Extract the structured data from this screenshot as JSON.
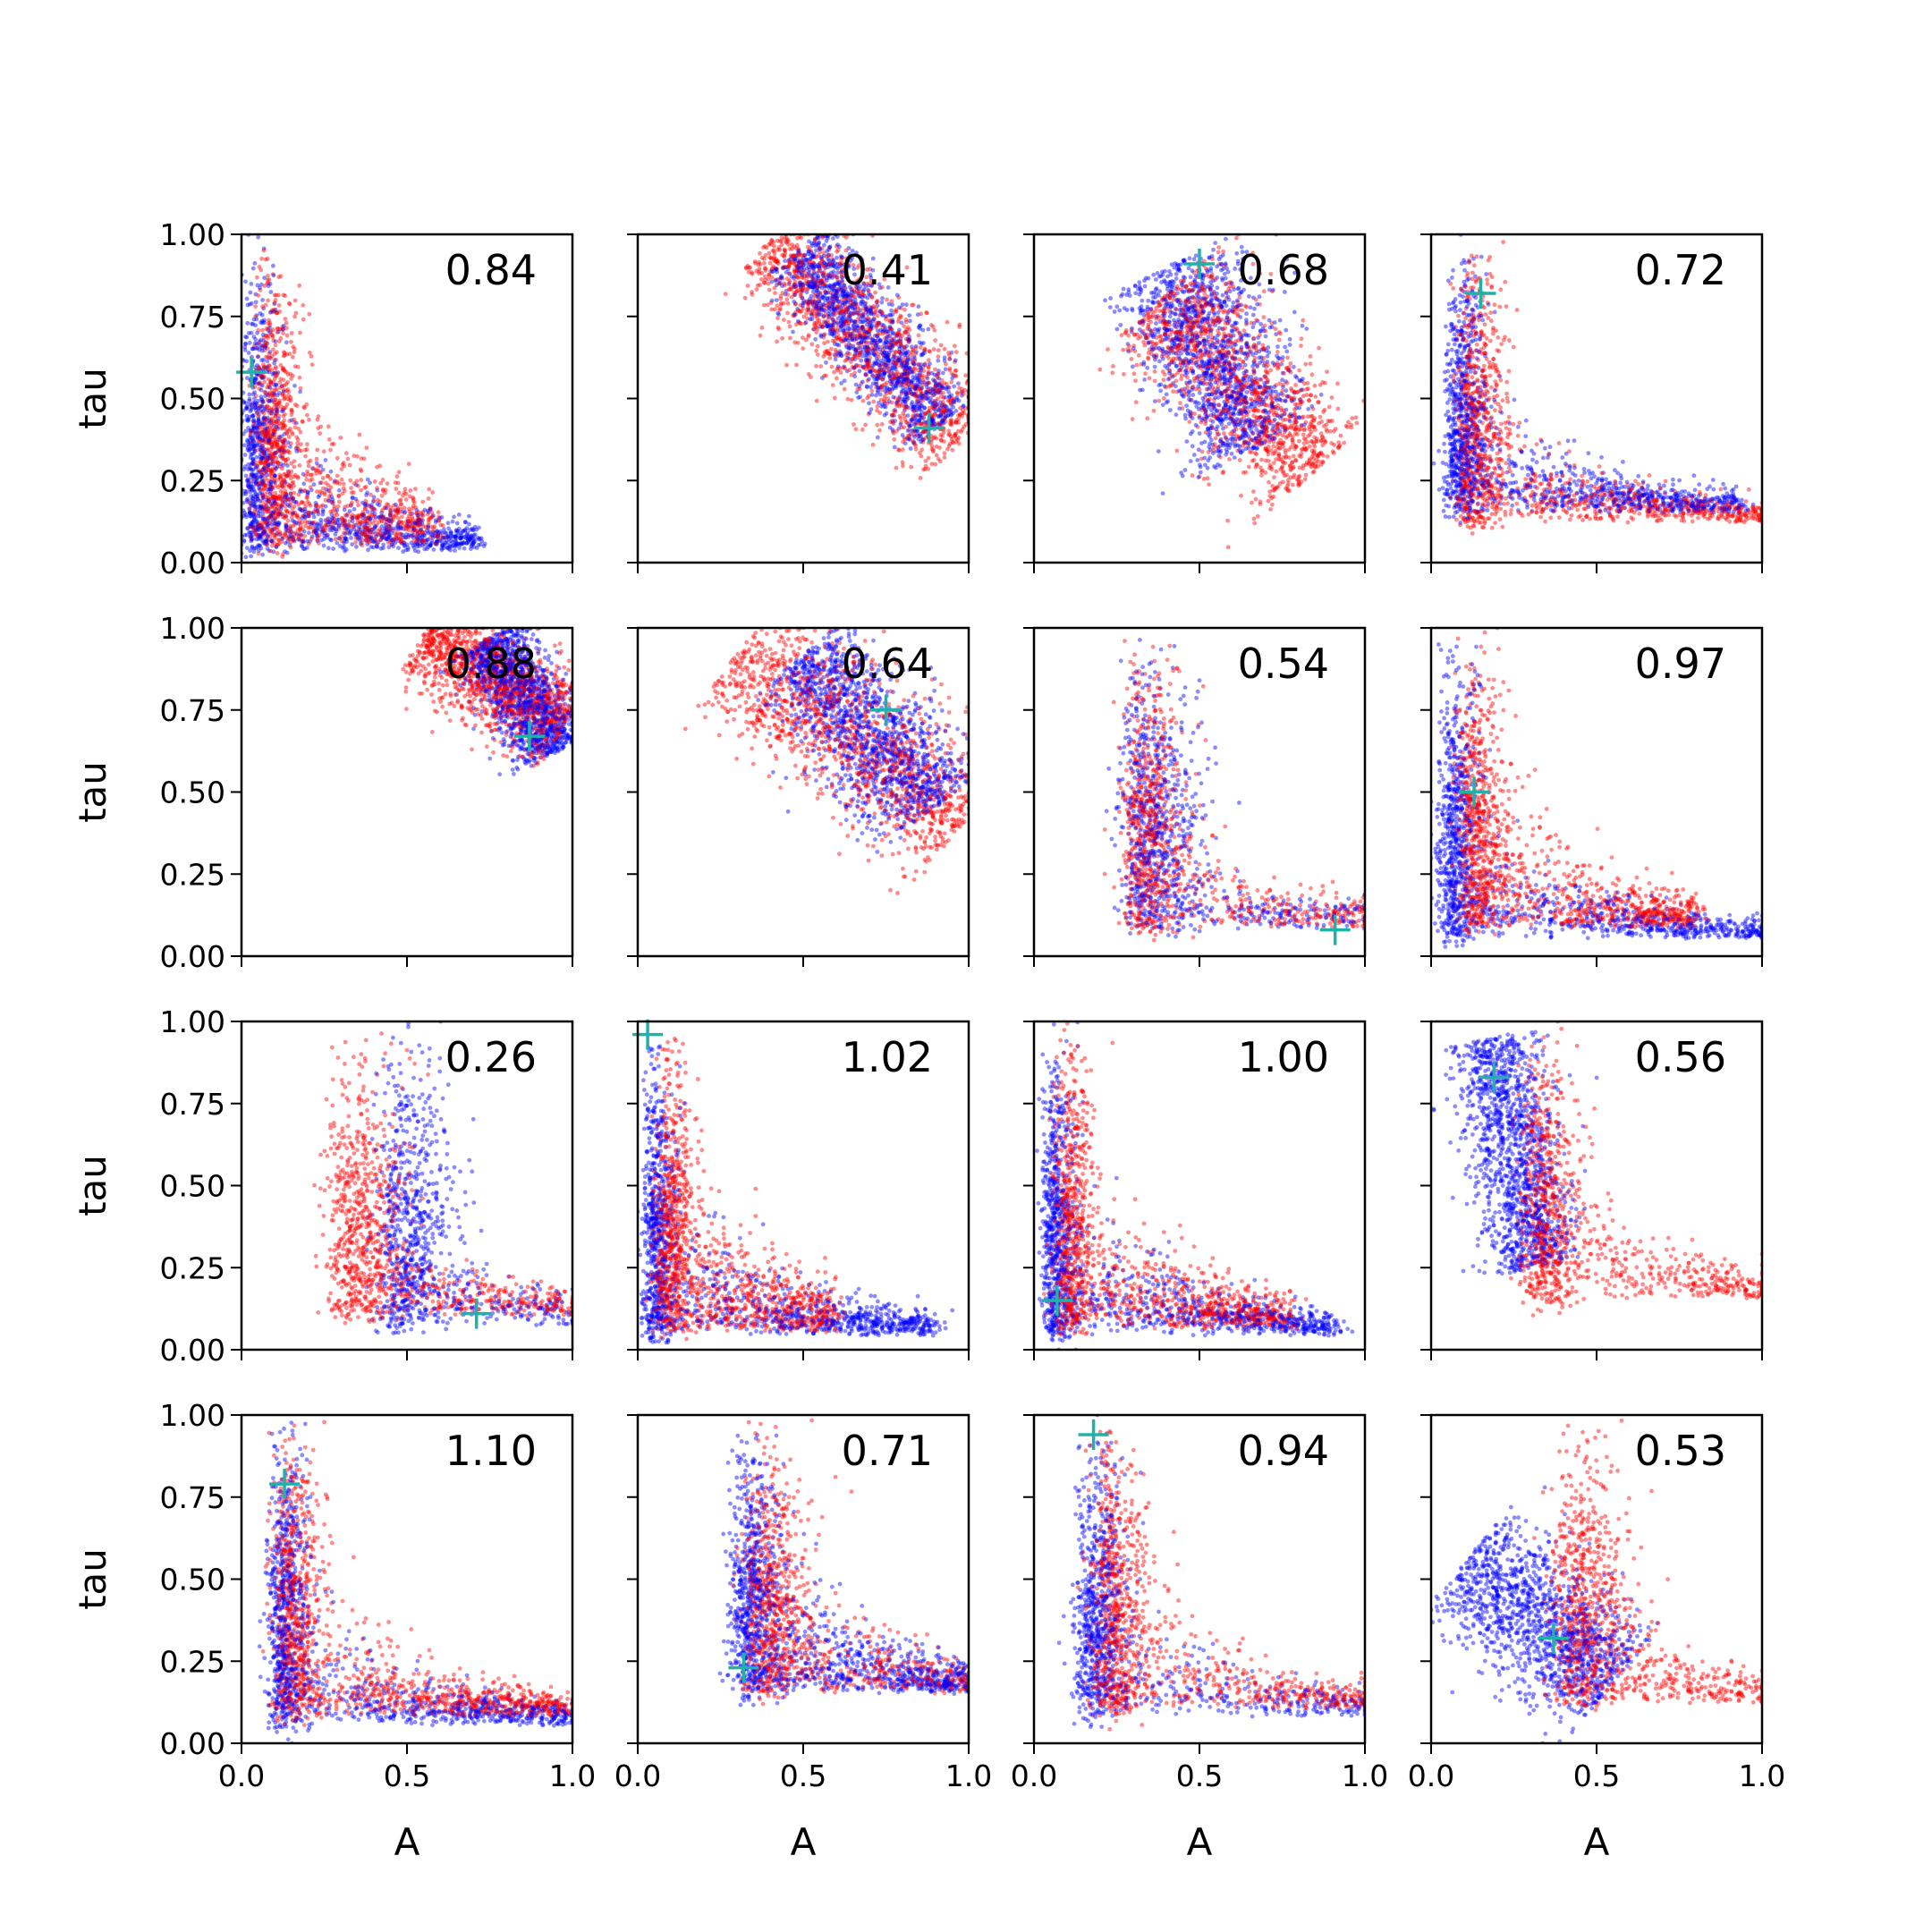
{
  "figure": {
    "background": "#ffffff",
    "blue": "#0000ff",
    "red": "#ff0000",
    "marker": "#20b2aa"
  },
  "chart_data": {
    "type": "scatter",
    "layout": "4x4 grid, shared x and y axes",
    "xlabel": "A",
    "ylabel": "tau",
    "xlim": [
      0,
      1
    ],
    "ylim": [
      0,
      1
    ],
    "xticks": [
      "0.0",
      "0.5",
      "1.0"
    ],
    "yticks": [
      "0.00",
      "0.25",
      "0.50",
      "0.75",
      "1.00"
    ],
    "grid": false,
    "legend": "none",
    "panels": [
      {
        "annotation": "0.84",
        "marker": [
          0.03,
          0.58
        ],
        "blue": {
          "shape": "L",
          "corner": [
            0.02,
            0.03
          ],
          "sx": 0.05,
          "sy": 0.35,
          "ex": 0.2
        },
        "red": {
          "shape": "L",
          "corner": [
            0.06,
            0.05
          ],
          "sx": 0.06,
          "sy": 0.45,
          "ex": 0.15
        }
      },
      {
        "annotation": "0.41",
        "marker": [
          0.88,
          0.41
        ],
        "blue": {
          "shape": "band",
          "from": [
            0.48,
            0.95
          ],
          "to": [
            0.92,
            0.42
          ],
          "w": 0.06
        },
        "red": {
          "shape": "band",
          "from": [
            0.4,
            0.98
          ],
          "to": [
            0.98,
            0.37
          ],
          "w": 0.08
        }
      },
      {
        "annotation": "0.68",
        "marker": [
          0.5,
          0.91
        ],
        "blue": {
          "shape": "band",
          "from": [
            0.4,
            0.9
          ],
          "to": [
            0.68,
            0.35
          ],
          "w": 0.1
        },
        "red": {
          "shape": "band",
          "from": [
            0.38,
            0.8
          ],
          "to": [
            0.85,
            0.28
          ],
          "w": 0.1
        }
      },
      {
        "annotation": "0.72",
        "marker": [
          0.15,
          0.82
        ],
        "blue": {
          "shape": "L",
          "corner": [
            0.06,
            0.15
          ],
          "sx": 0.05,
          "sy": 0.35,
          "ex": 0.25
        },
        "red": {
          "shape": "L",
          "corner": [
            0.1,
            0.12
          ],
          "sx": 0.06,
          "sy": 0.35,
          "ex": 0.3
        }
      },
      {
        "annotation": "0.88",
        "marker": [
          0.87,
          0.67
        ],
        "blue": {
          "shape": "band",
          "from": [
            0.75,
            0.97
          ],
          "to": [
            0.95,
            0.62
          ],
          "w": 0.06
        },
        "red": {
          "shape": "band",
          "from": [
            0.55,
            0.98
          ],
          "to": [
            0.98,
            0.7
          ],
          "w": 0.07
        }
      },
      {
        "annotation": "0.64",
        "marker": [
          0.75,
          0.75
        ],
        "blue": {
          "shape": "band",
          "from": [
            0.5,
            0.92
          ],
          "to": [
            0.9,
            0.45
          ],
          "w": 0.09
        },
        "red": {
          "shape": "band",
          "from": [
            0.3,
            0.92
          ],
          "to": [
            0.98,
            0.4
          ],
          "w": 0.1
        }
      },
      {
        "annotation": "0.54",
        "marker": [
          0.91,
          0.08
        ],
        "blue": {
          "shape": "L",
          "corner": [
            0.3,
            0.08
          ],
          "sx": 0.1,
          "sy": 0.25,
          "ex": 0.6
        },
        "red": {
          "shape": "L",
          "corner": [
            0.3,
            0.08
          ],
          "sx": 0.08,
          "sy": 0.4,
          "ex": 0.4
        }
      },
      {
        "annotation": "0.97",
        "marker": [
          0.13,
          0.5
        ],
        "blue": {
          "shape": "L",
          "corner": [
            0.04,
            0.05
          ],
          "sx": 0.05,
          "sy": 0.4,
          "ex": 0.3
        },
        "red": {
          "shape": "L",
          "corner": [
            0.1,
            0.08
          ],
          "sx": 0.06,
          "sy": 0.45,
          "ex": 0.2
        }
      },
      {
        "annotation": "0.26",
        "marker": [
          0.71,
          0.11
        ],
        "blue": {
          "shape": "L",
          "corner": [
            0.45,
            0.07
          ],
          "sx": 0.1,
          "sy": 0.3,
          "ex": 0.45
        },
        "red": {
          "shape": "L",
          "corner": [
            0.3,
            0.1
          ],
          "sx": 0.1,
          "sy": 0.3,
          "ex": 0.35
        }
      },
      {
        "annotation": "1.02",
        "marker": [
          0.03,
          0.96
        ],
        "blue": {
          "shape": "L",
          "corner": [
            0.03,
            0.04
          ],
          "sx": 0.04,
          "sy": 0.45,
          "ex": 0.25
        },
        "red": {
          "shape": "L",
          "corner": [
            0.07,
            0.05
          ],
          "sx": 0.05,
          "sy": 0.45,
          "ex": 0.15
        }
      },
      {
        "annotation": "1.00",
        "marker": [
          0.07,
          0.15
        ],
        "blue": {
          "shape": "L",
          "corner": [
            0.04,
            0.04
          ],
          "sx": 0.04,
          "sy": 0.45,
          "ex": 0.25
        },
        "red": {
          "shape": "L",
          "corner": [
            0.08,
            0.06
          ],
          "sx": 0.05,
          "sy": 0.45,
          "ex": 0.2
        }
      },
      {
        "annotation": "0.56",
        "marker": [
          0.19,
          0.83
        ],
        "blue": {
          "shape": "band",
          "from": [
            0.18,
            0.95
          ],
          "to": [
            0.32,
            0.25
          ],
          "w": 0.07
        },
        "red": {
          "shape": "L",
          "corner": [
            0.3,
            0.15
          ],
          "sx": 0.07,
          "sy": 0.4,
          "ex": 0.35
        }
      },
      {
        "annotation": "1.10",
        "marker": [
          0.13,
          0.79
        ],
        "blue": {
          "shape": "L",
          "corner": [
            0.1,
            0.05
          ],
          "sx": 0.05,
          "sy": 0.4,
          "ex": 0.3
        },
        "red": {
          "shape": "L",
          "corner": [
            0.12,
            0.08
          ],
          "sx": 0.06,
          "sy": 0.4,
          "ex": 0.25
        }
      },
      {
        "annotation": "0.71",
        "marker": [
          0.32,
          0.23
        ],
        "blue": {
          "shape": "L",
          "corner": [
            0.3,
            0.15
          ],
          "sx": 0.07,
          "sy": 0.45,
          "ex": 0.2
        },
        "red": {
          "shape": "L",
          "corner": [
            0.35,
            0.15
          ],
          "sx": 0.08,
          "sy": 0.4,
          "ex": 0.35
        }
      },
      {
        "annotation": "0.94",
        "marker": [
          0.18,
          0.94
        ],
        "blue": {
          "shape": "L",
          "corner": [
            0.15,
            0.08
          ],
          "sx": 0.06,
          "sy": 0.45,
          "ex": 0.45
        },
        "red": {
          "shape": "L",
          "corner": [
            0.2,
            0.1
          ],
          "sx": 0.07,
          "sy": 0.4,
          "ex": 0.35
        }
      },
      {
        "annotation": "0.53",
        "marker": [
          0.37,
          0.32
        ],
        "blue": {
          "shape": "band",
          "from": [
            0.1,
            0.55
          ],
          "to": [
            0.55,
            0.18
          ],
          "w": 0.1
        },
        "red": {
          "shape": "L",
          "corner": [
            0.4,
            0.12
          ],
          "sx": 0.1,
          "sy": 0.35,
          "ex": 0.35
        }
      }
    ]
  }
}
